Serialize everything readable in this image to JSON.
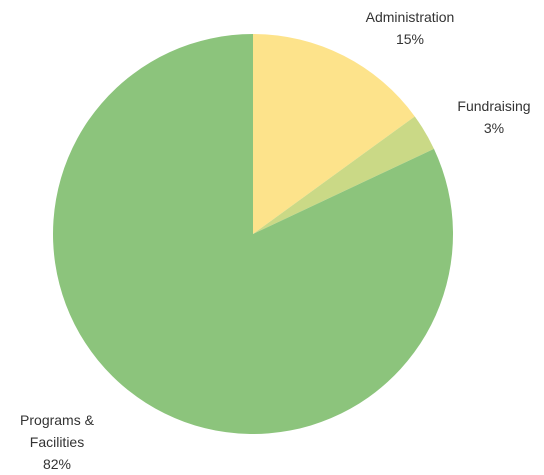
{
  "chart_data": {
    "type": "pie",
    "slices": [
      {
        "name": "Administration",
        "value": 15,
        "display": "15%",
        "color": "#fde38b"
      },
      {
        "name": "Fundraising",
        "value": 3,
        "display": "3%",
        "color": "#cad986"
      },
      {
        "name": "Programs & Facilities",
        "value": 82,
        "display": "82%",
        "color": "#8cc47c"
      }
    ],
    "labels": [
      {
        "lines": [
          "Administration",
          "15%"
        ]
      },
      {
        "lines": [
          "Fundraising",
          "3%"
        ]
      },
      {
        "lines": [
          "Programs &",
          "Facilities",
          "82%"
        ]
      }
    ],
    "start": "12 o'clock",
    "direction": "clockwise",
    "legend": "none",
    "title": ""
  }
}
